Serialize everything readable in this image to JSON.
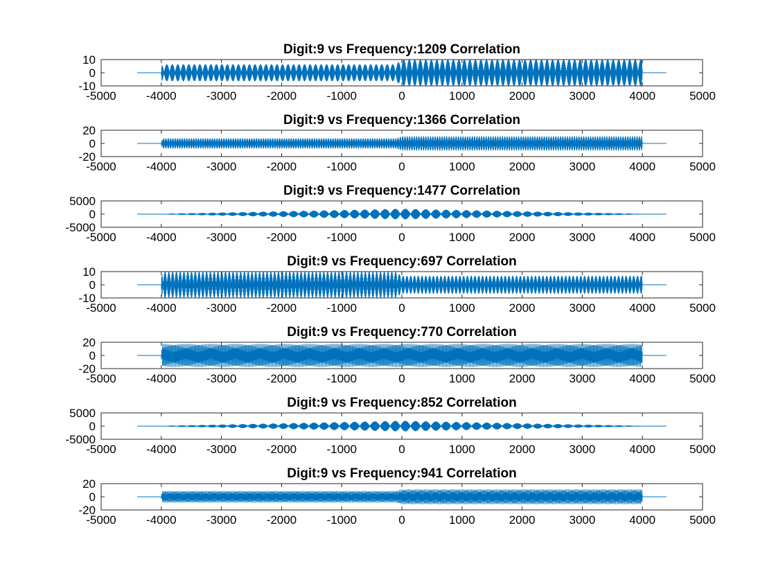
{
  "figure": {
    "background": "#ffffff",
    "line_color": "#0072BD"
  },
  "chart_data": [
    {
      "type": "line",
      "title": "Digit:9 vs Frequency:1209 Correlation",
      "xlim": [
        -5000,
        5000
      ],
      "ylim": [
        -10,
        10
      ],
      "xticks": [
        "-5000",
        "-4000",
        "-3000",
        "-2000",
        "-1000",
        "0",
        "1000",
        "2000",
        "3000",
        "4000",
        "5000"
      ],
      "yticks": [
        "10",
        "0",
        "-10"
      ],
      "yticks_values": [
        10,
        0,
        -10
      ],
      "series": [
        {
          "x_range": [
            -4400,
            4400
          ],
          "support": [
            -4000,
            4000
          ],
          "envelope": {
            "x": [
              -4000,
              -3990,
              -100,
              0,
              3990,
              4000
            ],
            "amplitude": [
              0,
              6.2,
              6.2,
              9.8,
              9.8,
              0
            ]
          },
          "cycles": 240
        }
      ]
    },
    {
      "type": "line",
      "title": "Digit:9 vs Frequency:1366 Correlation",
      "xlim": [
        -5000,
        5000
      ],
      "ylim": [
        -20,
        20
      ],
      "xticks": [
        "-5000",
        "-4000",
        "-3000",
        "-2000",
        "-1000",
        "0",
        "1000",
        "2000",
        "3000",
        "4000",
        "5000"
      ],
      "yticks": [
        "20",
        "0",
        "-20"
      ],
      "yticks_values": [
        20,
        0,
        -20
      ],
      "series": [
        {
          "x_range": [
            -4400,
            4400
          ],
          "support": [
            -4000,
            4000
          ],
          "envelope": {
            "x": [
              -4000,
              -3990,
              -100,
              0,
              3990,
              4000
            ],
            "amplitude": [
              0,
              7.5,
              7.5,
              10.5,
              10.5,
              0
            ]
          },
          "cycles": 180
        }
      ]
    },
    {
      "type": "line",
      "title": "Digit:9 vs Frequency:1477 Correlation",
      "xlim": [
        -5000,
        5000
      ],
      "ylim": [
        -5000,
        5000
      ],
      "xticks": [
        "-5000",
        "-4000",
        "-3000",
        "-2000",
        "-1000",
        "0",
        "1000",
        "2000",
        "3000",
        "4000",
        "5000"
      ],
      "yticks": [
        "5000",
        "0",
        "-5000"
      ],
      "yticks_values": [
        5000,
        0,
        -5000
      ],
      "series": [
        {
          "x_range": [
            -4400,
            4400
          ],
          "support": [
            -4000,
            4000
          ],
          "envelope": {
            "x": [
              -4000,
              0,
              4000
            ],
            "amplitude": [
              0,
              1900,
              0
            ]
          },
          "cycles": 260
        }
      ]
    },
    {
      "type": "line",
      "title": "Digit:9 vs Frequency:697 Correlation",
      "xlim": [
        -5000,
        5000
      ],
      "ylim": [
        -10,
        10
      ],
      "xticks": [
        "-5000",
        "-4000",
        "-3000",
        "-2000",
        "-1000",
        "0",
        "1000",
        "2000",
        "3000",
        "4000",
        "5000"
      ],
      "yticks": [
        "10",
        "0",
        "-10"
      ],
      "yticks_values": [
        10,
        0,
        -10
      ],
      "series": [
        {
          "x_range": [
            -4400,
            4400
          ],
          "support": [
            -4000,
            4000
          ],
          "envelope": {
            "x": [
              -4000,
              -3990,
              -100,
              0,
              3990,
              4000
            ],
            "amplitude": [
              0,
              9.6,
              9.6,
              6.6,
              6.6,
              0
            ]
          },
          "cycles": 220
        }
      ]
    },
    {
      "type": "line",
      "title": "Digit:9 vs Frequency:770 Correlation",
      "xlim": [
        -5000,
        5000
      ],
      "ylim": [
        -20,
        20
      ],
      "xticks": [
        "-5000",
        "-4000",
        "-3000",
        "-2000",
        "-1000",
        "0",
        "1000",
        "2000",
        "3000",
        "4000",
        "5000"
      ],
      "yticks": [
        "20",
        "0",
        "-20"
      ],
      "yticks_values": [
        20,
        0,
        -20
      ],
      "series": [
        {
          "x_range": [
            -4400,
            4400
          ],
          "support": [
            -4000,
            4000
          ],
          "envelope": {
            "x": [
              -4000,
              -3990,
              3990,
              4000
            ],
            "amplitude": [
              0,
              17,
              17,
              0
            ]
          },
          "cycles": 115
        }
      ]
    },
    {
      "type": "line",
      "title": "Digit:9 vs Frequency:852 Correlation",
      "xlim": [
        -5000,
        5000
      ],
      "ylim": [
        -5000,
        5000
      ],
      "xticks": [
        "-5000",
        "-4000",
        "-3000",
        "-2000",
        "-1000",
        "0",
        "1000",
        "2000",
        "3000",
        "4000",
        "5000"
      ],
      "yticks": [
        "5000",
        "0",
        "-5000"
      ],
      "yticks_values": [
        5000,
        0,
        -5000
      ],
      "series": [
        {
          "x_range": [
            -4400,
            4400
          ],
          "support": [
            -4000,
            4000
          ],
          "envelope": {
            "x": [
              -4000,
              0,
              4000
            ],
            "amplitude": [
              0,
              1900,
              0
            ]
          },
          "cycles": 260
        }
      ]
    },
    {
      "type": "line",
      "title": "Digit:9 vs Frequency:941 Correlation",
      "xlim": [
        -5000,
        5000
      ],
      "ylim": [
        -20,
        20
      ],
      "xticks": [
        "-5000",
        "-4000",
        "-3000",
        "-2000",
        "-1000",
        "0",
        "1000",
        "2000",
        "3000",
        "4000",
        "5000"
      ],
      "yticks": [
        "20",
        "0",
        "-20"
      ],
      "yticks_values": [
        20,
        0,
        -20
      ],
      "series": [
        {
          "x_range": [
            -4400,
            4400
          ],
          "support": [
            -4000,
            4000
          ],
          "envelope": {
            "x": [
              -4000,
              -3990,
              -100,
              0,
              3990,
              4000
            ],
            "amplitude": [
              0,
              8.5,
              8.5,
              11,
              11,
              0
            ]
          },
          "cycles": 120
        }
      ]
    }
  ]
}
